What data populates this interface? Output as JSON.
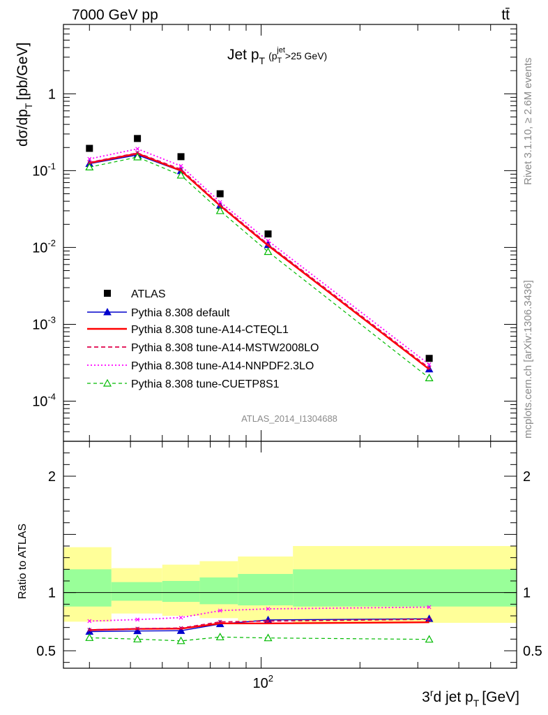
{
  "chart_data": {
    "type": "line",
    "title": "Jet p_T (p_T^jet>25 GeV)",
    "corner_left": "7000 GeV pp",
    "corner_right": "tt̄",
    "xlabel": "3^rd jet p_T [GeV]",
    "xscale": "log",
    "xlim": [
      25,
      600
    ],
    "analysis_tag": "ATLAS_2014_I1304688",
    "side_labels": {
      "upper": "Rivet 3.1.10, ≥ 2.6M events",
      "lower": "mcplots.cern.ch [arXiv:1306.3436]"
    },
    "main_panel": {
      "ylabel": "dσ/dp_T [pb/GeV]",
      "yscale": "log",
      "ylim": [
        3e-05,
        8
      ],
      "yticks": [
        {
          "value": 1,
          "label": "1"
        },
        {
          "value": 0.1,
          "label": "10^-1"
        },
        {
          "value": 0.01,
          "label": "10^-2"
        },
        {
          "value": 0.001,
          "label": "10^-3"
        },
        {
          "value": 0.0001,
          "label": "10^-4"
        }
      ],
      "x_bins": [
        25,
        35,
        50,
        65,
        85,
        125,
        600
      ],
      "x_points": [
        30,
        42,
        57,
        75,
        105,
        325
      ],
      "series": [
        {
          "name": "ATLAS",
          "style": "data",
          "color": "#000000",
          "values": [
            0.195,
            0.262,
            0.152,
            0.05,
            0.015,
            0.00036
          ]
        },
        {
          "name": "Pythia 8.308 default",
          "style": "line-filled-triangle",
          "color": "#0000cc",
          "values": [
            0.123,
            0.16,
            0.099,
            0.035,
            0.0108,
            0.00026
          ]
        },
        {
          "name": "Pythia 8.308 tune-A14-CTEQL1",
          "style": "solid-thick",
          "color": "#ff0000",
          "values": [
            0.126,
            0.167,
            0.1,
            0.035,
            0.0106,
            0.00026
          ]
        },
        {
          "name": "Pythia 8.308 tune-A14-MSTW2008LO",
          "style": "dashed",
          "color": "#e0004a",
          "values": [
            0.128,
            0.17,
            0.104,
            0.036,
            0.011,
            0.00027
          ]
        },
        {
          "name": "Pythia 8.308 tune-A14-NNPDF2.3LO",
          "style": "dotted",
          "color": "#ff00ff",
          "values": [
            0.142,
            0.192,
            0.115,
            0.039,
            0.0122,
            0.0003
          ]
        },
        {
          "name": "Pythia 8.308 tune-CUETP8S1",
          "style": "dashed-open-triangle",
          "color": "#00bb00",
          "values": [
            0.111,
            0.15,
            0.087,
            0.03,
            0.0088,
            0.0002
          ]
        }
      ]
    },
    "ratio_panel": {
      "ylabel": "Ratio to ATLAS",
      "ylim": [
        0.35,
        2.3
      ],
      "yticks": [
        {
          "value": 0.5,
          "label": "0.5"
        },
        {
          "value": 1,
          "label": "1"
        },
        {
          "value": 2,
          "label": "2"
        }
      ],
      "x_tick_label": "10^2",
      "error_bands": [
        {
          "x0": 25,
          "x1": 35,
          "inner": [
            0.88,
            1.2
          ],
          "outer": [
            0.75,
            1.39
          ]
        },
        {
          "x0": 35,
          "x1": 50,
          "inner": [
            0.93,
            1.09
          ],
          "outer": [
            0.82,
            1.21
          ]
        },
        {
          "x0": 50,
          "x1": 65,
          "inner": [
            0.92,
            1.1
          ],
          "outer": [
            0.8,
            1.24
          ]
        },
        {
          "x0": 65,
          "x1": 85,
          "inner": [
            0.9,
            1.13
          ],
          "outer": [
            0.78,
            1.27
          ]
        },
        {
          "x0": 85,
          "x1": 125,
          "inner": [
            0.89,
            1.16
          ],
          "outer": [
            0.76,
            1.31
          ]
        },
        {
          "x0": 125,
          "x1": 600,
          "inner": [
            0.88,
            1.2
          ],
          "outer": [
            0.74,
            1.4
          ]
        }
      ],
      "band_colors": {
        "inner": "#99ff99",
        "outer": "#ffff99"
      },
      "series": [
        {
          "name": "Pythia 8.308 default",
          "values": [
            0.665,
            0.67,
            0.672,
            0.73,
            0.765,
            0.775
          ]
        },
        {
          "name": "Pythia 8.308 tune-A14-CTEQL1",
          "values": [
            0.678,
            0.688,
            0.69,
            0.735,
            0.735,
            0.745
          ]
        },
        {
          "name": "Pythia 8.308 tune-A14-MSTW2008LO",
          "values": [
            0.68,
            0.69,
            0.695,
            0.748,
            0.755,
            0.77
          ]
        },
        {
          "name": "Pythia 8.308 tune-A14-NNPDF2.3LO",
          "values": [
            0.755,
            0.768,
            0.785,
            0.845,
            0.86,
            0.875
          ]
        },
        {
          "name": "Pythia 8.308 tune-CUETP8S1",
          "values": [
            0.612,
            0.6,
            0.585,
            0.618,
            0.61,
            0.598
          ]
        }
      ]
    }
  }
}
